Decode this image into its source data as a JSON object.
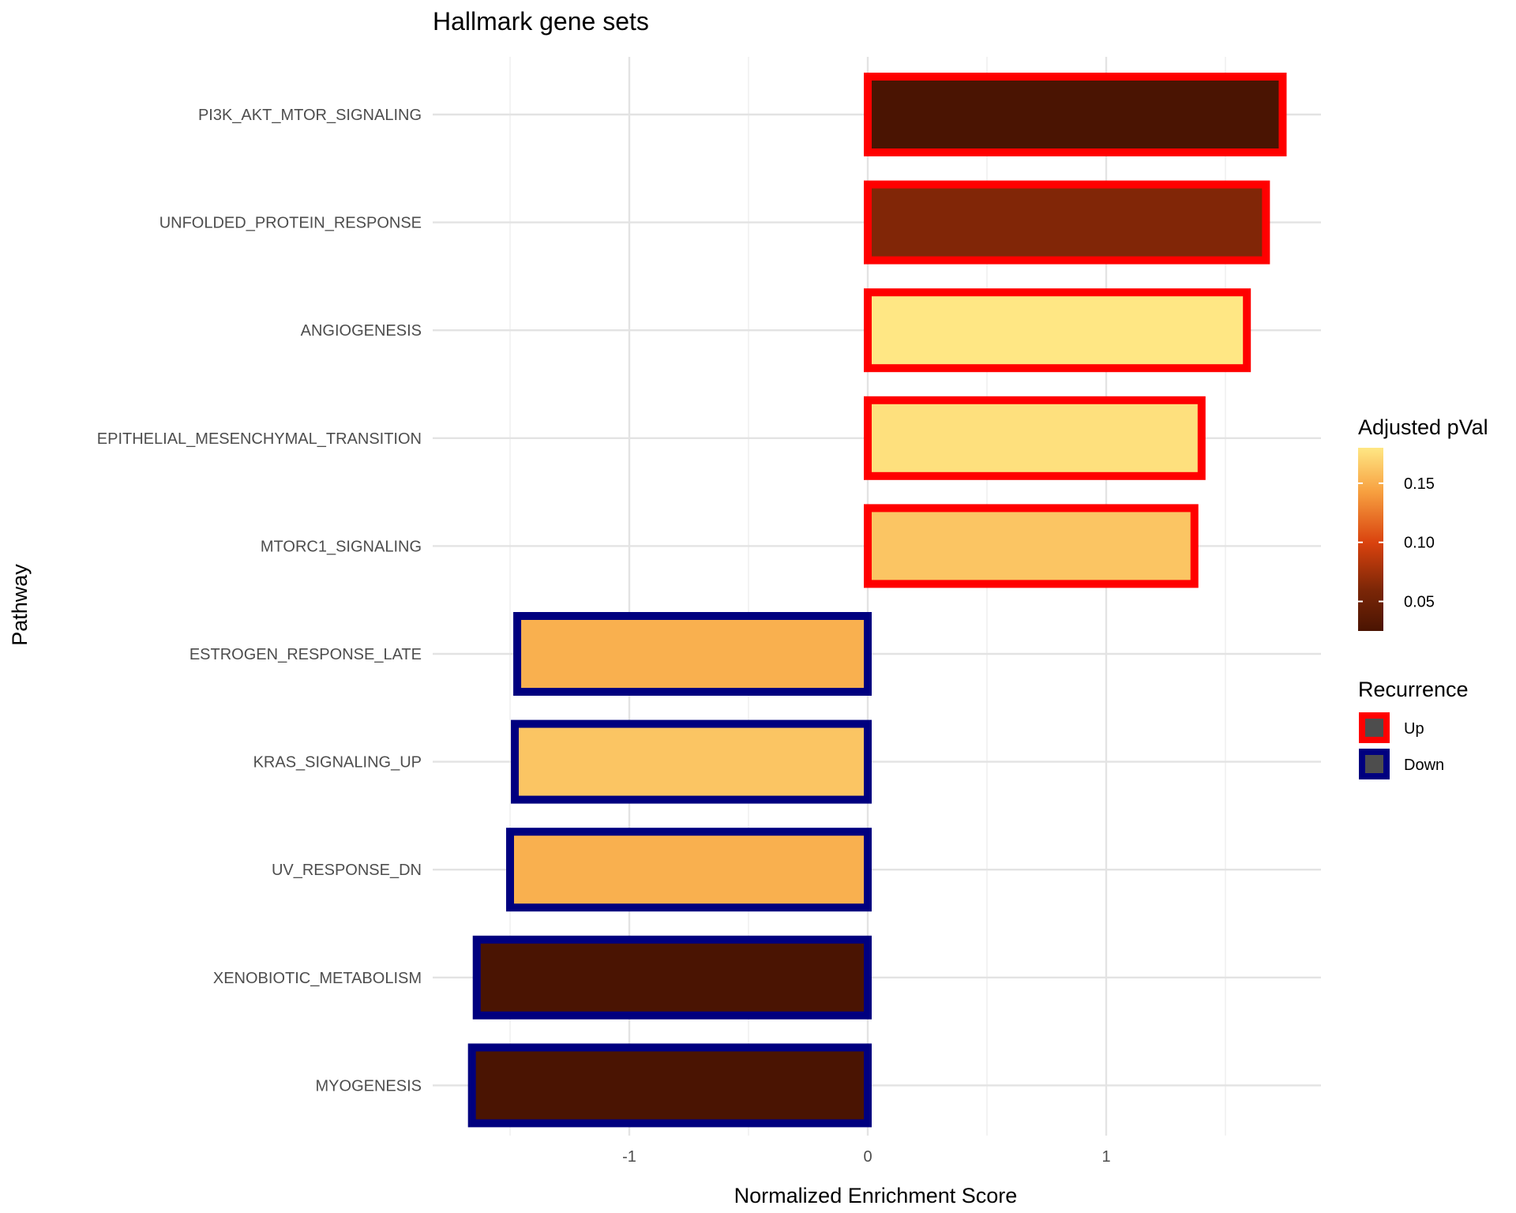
{
  "chart_data": {
    "type": "bar",
    "orientation": "horizontal",
    "title": "Hallmark gene sets",
    "xlabel": "Normalized Enrichment Score",
    "ylabel": "Pathway",
    "xlim": [
      -1.84,
      1.9
    ],
    "xticks": [
      -1,
      0,
      1
    ],
    "xtick_labels": [
      "-1",
      "0",
      "1"
    ],
    "grid": true,
    "categories": [
      "PI3K_AKT_MTOR_SIGNALING",
      "UNFOLDED_PROTEIN_RESPONSE",
      "ANGIOGENESIS",
      "EPITHELIAL_MESENCHYMAL_TRANSITION",
      "MTORC1_SIGNALING",
      "ESTROGEN_RESPONSE_LATE",
      "KRAS_SIGNALING_UP",
      "UV_RESPONSE_DN",
      "XENOBIOTIC_METABOLISM",
      "MYOGENESIS"
    ],
    "values": [
      1.74,
      1.67,
      1.59,
      1.4,
      1.37,
      -1.47,
      -1.48,
      -1.5,
      -1.64,
      -1.66
    ],
    "adjusted_pval": [
      0.025,
      0.045,
      0.18,
      0.175,
      0.155,
      0.14,
      0.155,
      0.14,
      0.025,
      0.025
    ],
    "recurrence": [
      "Up",
      "Up",
      "Up",
      "Up",
      "Up",
      "Down",
      "Down",
      "Down",
      "Down",
      "Down"
    ],
    "fill_legend": {
      "title": "Adjusted pVal",
      "ticks": [
        0.05,
        0.1,
        0.15
      ],
      "tick_labels": [
        "0.05",
        "0.10",
        "0.15"
      ],
      "range": [
        0.025,
        0.18
      ],
      "colors": [
        "#4a1402",
        "#d9420e",
        "#f7a040",
        "#ffe784"
      ]
    },
    "outline_legend": {
      "title": "Recurrence",
      "items": [
        {
          "label": "Up",
          "color": "#ff0000"
        },
        {
          "label": "Down",
          "color": "#00007f"
        }
      ]
    },
    "legend_position": "right"
  }
}
